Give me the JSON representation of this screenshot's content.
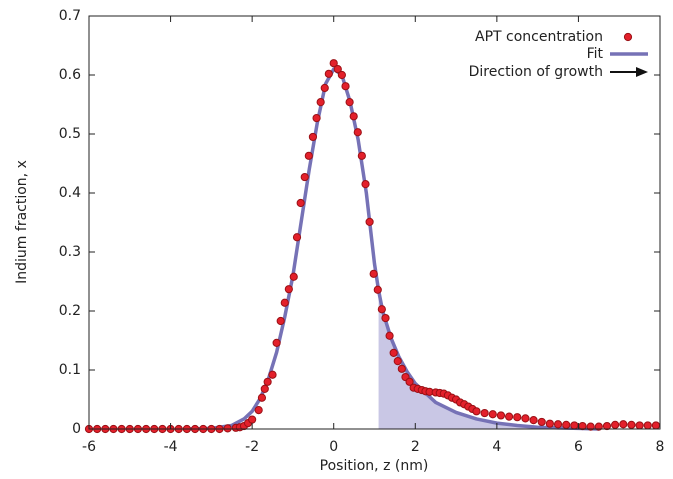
{
  "chart_data": {
    "type": "scatter",
    "xlabel": "Position, z (nm)",
    "ylabel": "Indium fraction, x",
    "xlim": [
      -6,
      8
    ],
    "ylim": [
      0,
      0.7
    ],
    "xticks": [
      -6,
      -4,
      -2,
      0,
      2,
      4,
      6,
      8
    ],
    "yticks": [
      0,
      0.1,
      0.2,
      0.3,
      0.4,
      0.5,
      0.6,
      0.7
    ],
    "legend": "upper right",
    "annotation": "Direction of growth",
    "series": [
      {
        "name": "APT concentration",
        "type": "scatter",
        "color": "#e3202b",
        "x": [
          -6,
          -5.8,
          -5.6,
          -5.4,
          -5.2,
          -5,
          -4.8,
          -4.6,
          -4.4,
          -4.2,
          -4,
          -3.8,
          -3.6,
          -3.4,
          -3.2,
          -3,
          -2.8,
          -2.6,
          -2.4,
          -2.3,
          -2.2,
          -2.1,
          -2.0,
          -1.84,
          -1.76,
          -1.69,
          -1.62,
          -1.5,
          -1.4,
          -1.3,
          -1.2,
          -1.1,
          -0.98,
          -0.9,
          -0.81,
          -0.71,
          -0.61,
          -0.51,
          -0.42,
          -0.32,
          -0.22,
          -0.12,
          0,
          0.1,
          0.2,
          0.29,
          0.39,
          0.49,
          0.59,
          0.69,
          0.78,
          0.88,
          0.98,
          1.08,
          1.18,
          1.27,
          1.37,
          1.47,
          1.57,
          1.67,
          1.76,
          1.86,
          1.96,
          2.06,
          2.16,
          2.25,
          2.35,
          2.5,
          2.6,
          2.7,
          2.8,
          2.9,
          3.0,
          3.1,
          3.2,
          3.3,
          3.4,
          3.5,
          3.7,
          3.9,
          4.1,
          4.3,
          4.5,
          4.7,
          4.9,
          5.1,
          5.3,
          5.5,
          5.7,
          5.9,
          6.1,
          6.3,
          6.5,
          6.7,
          6.9,
          7.1,
          7.3,
          7.5,
          7.7,
          7.9
        ],
        "values": [
          0,
          0,
          0,
          0,
          0,
          0,
          0,
          0,
          0,
          0,
          0,
          0,
          0,
          0,
          0,
          0,
          0,
          0.001,
          0.002,
          0.003,
          0.005,
          0.01,
          0.016,
          0.032,
          0.053,
          0.068,
          0.08,
          0.092,
          0.146,
          0.183,
          0.214,
          0.237,
          0.258,
          0.325,
          0.383,
          0.427,
          0.463,
          0.495,
          0.527,
          0.554,
          0.578,
          0.602,
          0.62,
          0.61,
          0.6,
          0.581,
          0.554,
          0.53,
          0.503,
          0.463,
          0.415,
          0.351,
          0.263,
          0.236,
          0.203,
          0.188,
          0.158,
          0.129,
          0.115,
          0.102,
          0.088,
          0.08,
          0.07,
          0.068,
          0.066,
          0.064,
          0.063,
          0.062,
          0.061,
          0.06,
          0.057,
          0.053,
          0.05,
          0.045,
          0.042,
          0.038,
          0.034,
          0.03,
          0.027,
          0.025,
          0.023,
          0.021,
          0.02,
          0.018,
          0.015,
          0.012,
          0.009,
          0.008,
          0.007,
          0.006,
          0.005,
          0.004,
          0.004,
          0.005,
          0.007,
          0.008,
          0.007,
          0.006,
          0.006,
          0.006
        ]
      },
      {
        "name": "Fit",
        "type": "line",
        "color": "#7672b6",
        "fill_color": "#c9c7e5",
        "fill_from": 1.1,
        "x": [
          -3.6,
          -3,
          -2.5,
          -2.2,
          -2,
          -1.8,
          -1.6,
          -1.4,
          -1.2,
          -1,
          -0.8,
          -0.6,
          -0.4,
          -0.2,
          0,
          0.2,
          0.4,
          0.6,
          0.8,
          1.0,
          1.1,
          1.2,
          1.4,
          1.6,
          1.8,
          2,
          2.5,
          3,
          3.5,
          4,
          4.5,
          5,
          5.5,
          6,
          6.5
        ],
        "values": [
          0,
          0.001,
          0.006,
          0.017,
          0.03,
          0.052,
          0.085,
          0.13,
          0.19,
          0.26,
          0.35,
          0.44,
          0.52,
          0.585,
          0.61,
          0.6,
          0.555,
          0.49,
          0.4,
          0.28,
          0.235,
          0.2,
          0.155,
          0.122,
          0.097,
          0.077,
          0.045,
          0.028,
          0.017,
          0.01,
          0.006,
          0.003,
          0.002,
          0.001,
          0
        ]
      }
    ]
  }
}
